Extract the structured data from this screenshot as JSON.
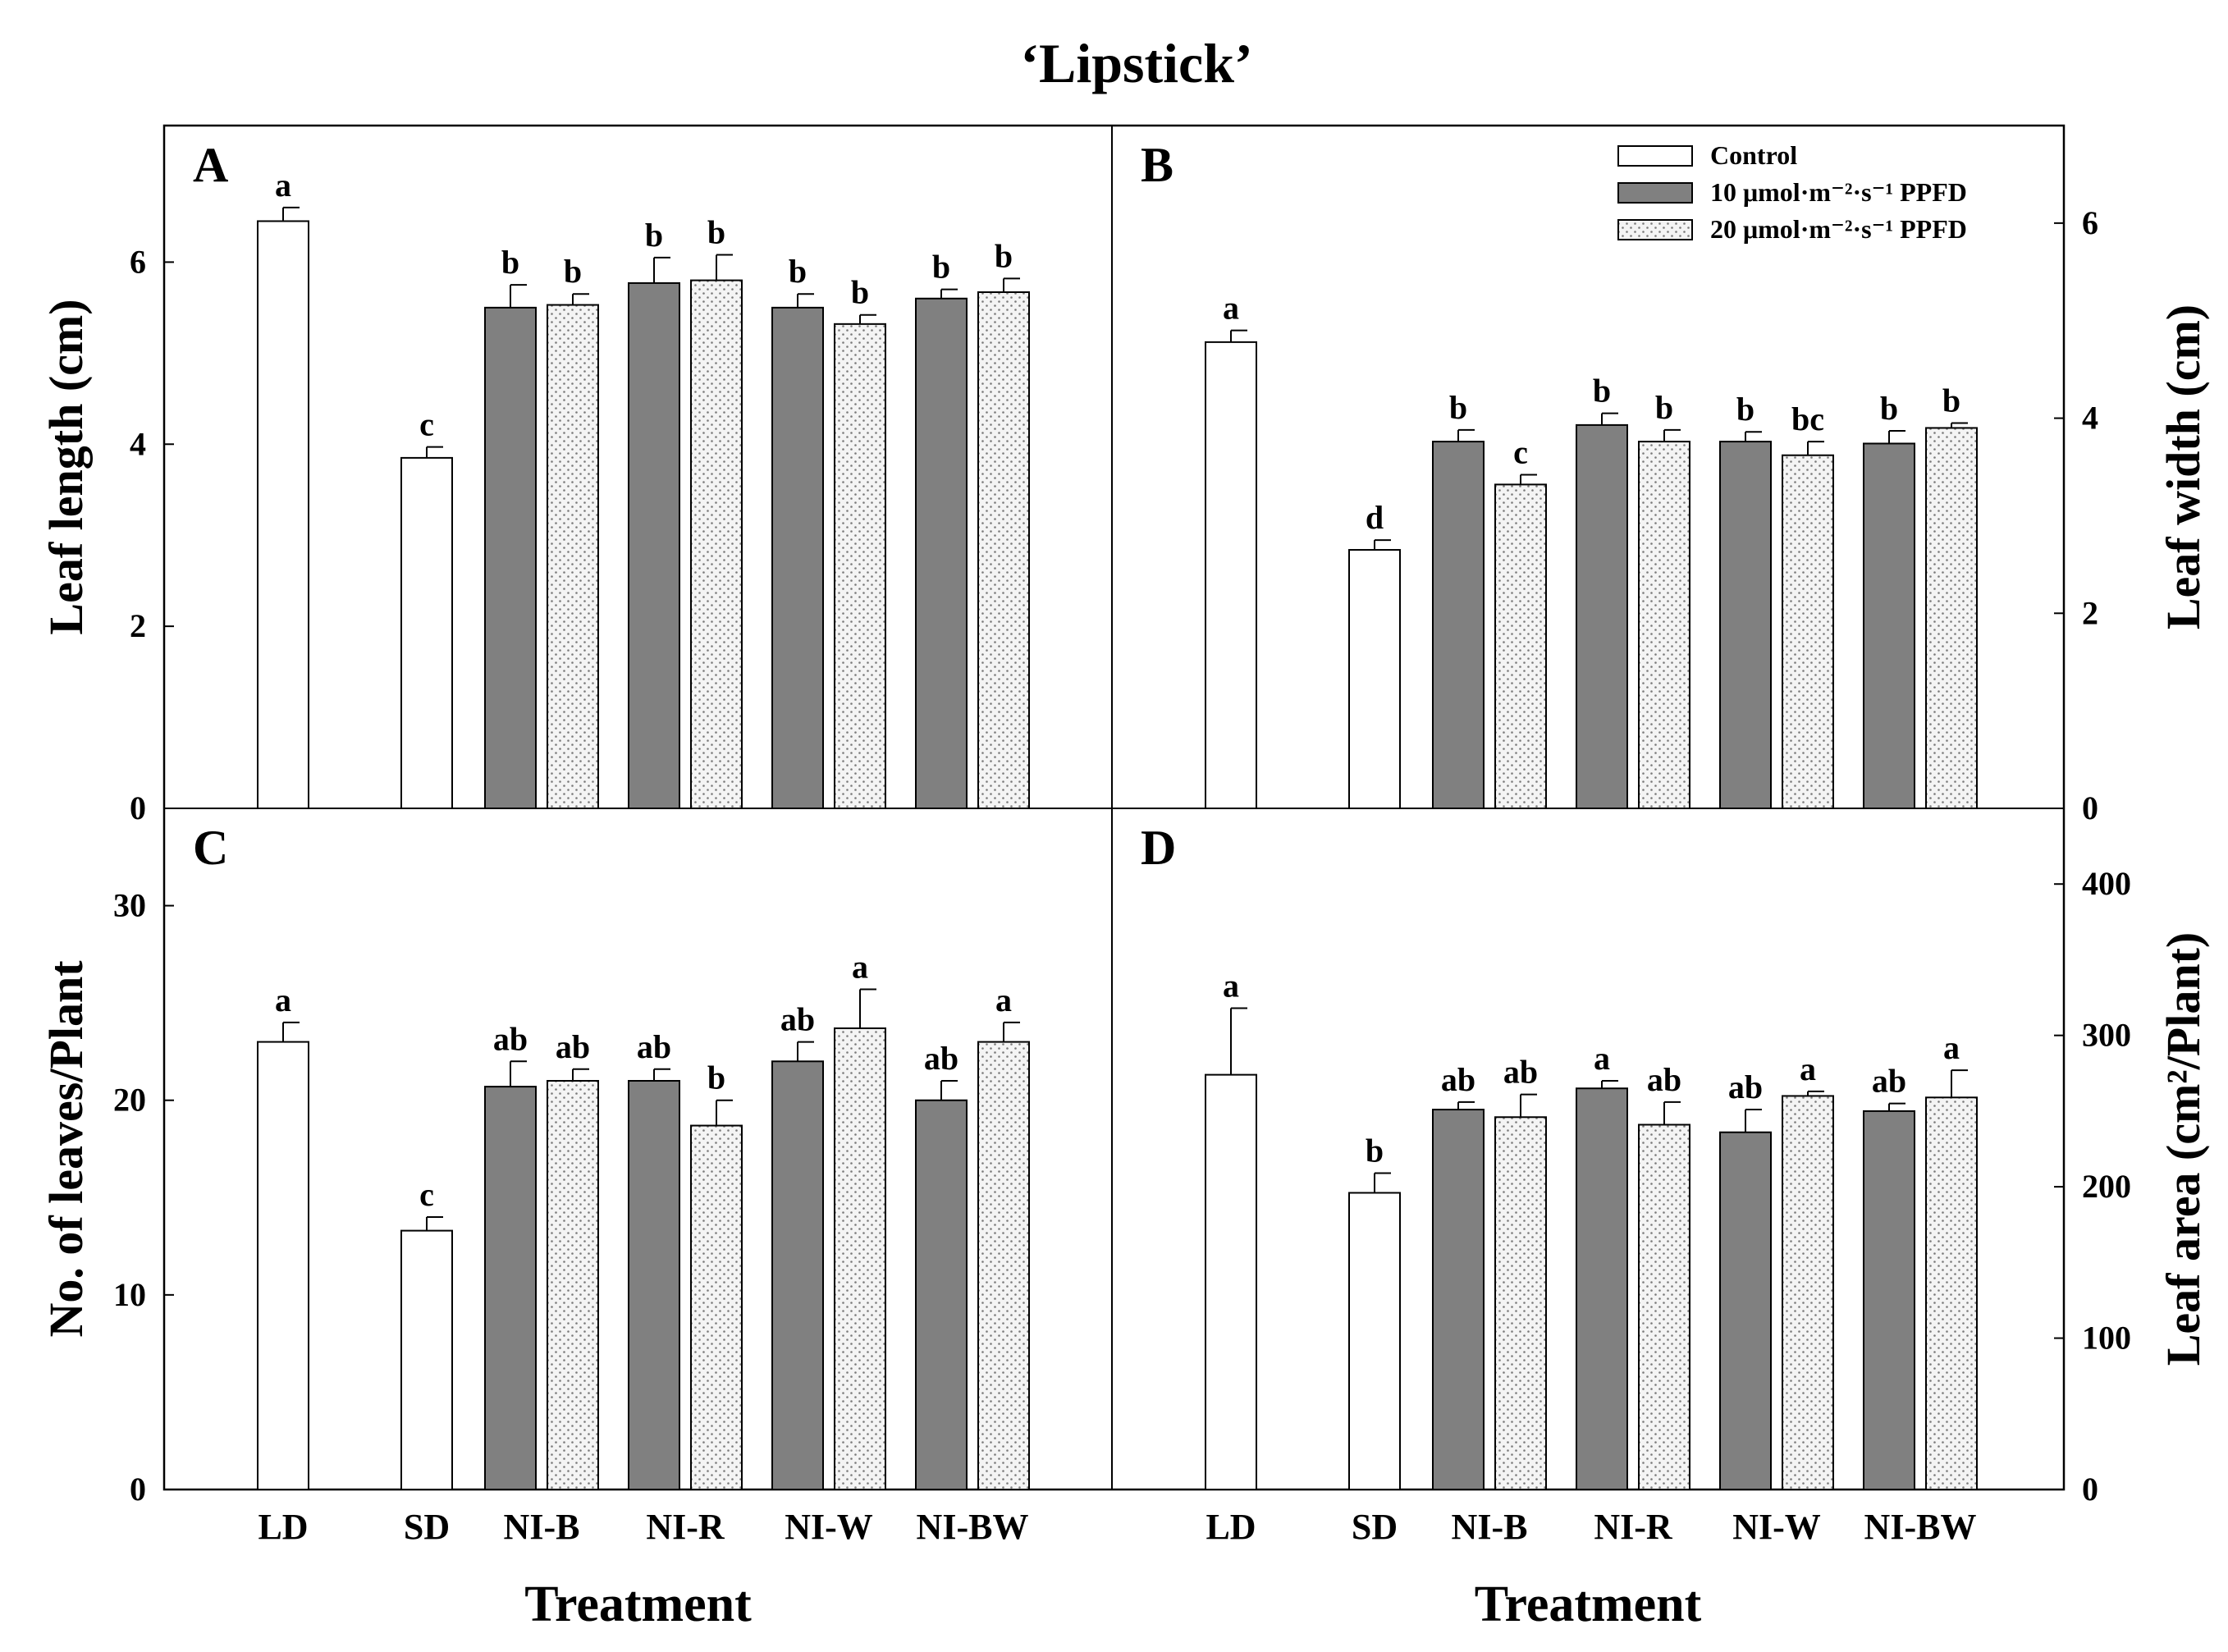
{
  "chart_data": {
    "type": "bar",
    "title": "‘Lipstick’",
    "xlabel": "Treatment",
    "categories": [
      "LD",
      "SD",
      "NI-B",
      "NI-R",
      "NI-W",
      "NI-BW"
    ],
    "legend": {
      "position": "top-right of panel B",
      "entries": [
        {
          "key": "control",
          "label": "Control"
        },
        {
          "key": "ppfd10",
          "label": "10 μmol·m⁻²·s⁻¹ PPFD"
        },
        {
          "key": "ppfd20",
          "label": "20 μmol·m⁻²·s⁻¹ PPFD"
        }
      ]
    },
    "colors": {
      "control": "#ffffff",
      "ppfd10": "#808080",
      "ppfd20": "#f4f4f4",
      "stroke": "#000000",
      "dots": "#7a7a7a"
    },
    "panels": [
      {
        "letter": "A",
        "ylabel": "Leaf length (cm)",
        "y_side": "left",
        "ylim": [
          0,
          7.5
        ],
        "yticks": [
          0,
          2,
          4,
          6
        ],
        "control": [
          {
            "category": "LD",
            "value": 6.45,
            "error": 0.15,
            "sig": "a"
          },
          {
            "category": "SD",
            "value": 3.85,
            "error": 0.12,
            "sig": "c"
          }
        ],
        "ppfd10": [
          {
            "category": "NI-B",
            "value": 5.5,
            "error": 0.25,
            "sig": "b"
          },
          {
            "category": "NI-R",
            "value": 5.77,
            "error": 0.28,
            "sig": "b"
          },
          {
            "category": "NI-W",
            "value": 5.5,
            "error": 0.15,
            "sig": "b"
          },
          {
            "category": "NI-BW",
            "value": 5.6,
            "error": 0.1,
            "sig": "b"
          }
        ],
        "ppfd20": [
          {
            "category": "NI-B",
            "value": 5.53,
            "error": 0.12,
            "sig": "b"
          },
          {
            "category": "NI-R",
            "value": 5.8,
            "error": 0.28,
            "sig": "b"
          },
          {
            "category": "NI-W",
            "value": 5.32,
            "error": 0.1,
            "sig": "b"
          },
          {
            "category": "NI-BW",
            "value": 5.67,
            "error": 0.15,
            "sig": "b"
          }
        ]
      },
      {
        "letter": "B",
        "ylabel": "Leaf width (cm)",
        "y_side": "right",
        "ylim": [
          0,
          7
        ],
        "yticks": [
          0,
          2,
          4,
          6
        ],
        "control": [
          {
            "category": "LD",
            "value": 4.78,
            "error": 0.12,
            "sig": "a"
          },
          {
            "category": "SD",
            "value": 2.65,
            "error": 0.1,
            "sig": "d"
          }
        ],
        "ppfd10": [
          {
            "category": "NI-B",
            "value": 3.76,
            "error": 0.12,
            "sig": "b"
          },
          {
            "category": "NI-R",
            "value": 3.93,
            "error": 0.12,
            "sig": "b"
          },
          {
            "category": "NI-W",
            "value": 3.76,
            "error": 0.1,
            "sig": "b"
          },
          {
            "category": "NI-BW",
            "value": 3.74,
            "error": 0.13,
            "sig": "b"
          }
        ],
        "ppfd20": [
          {
            "category": "NI-B",
            "value": 3.32,
            "error": 0.1,
            "sig": "c"
          },
          {
            "category": "NI-R",
            "value": 3.76,
            "error": 0.12,
            "sig": "b"
          },
          {
            "category": "NI-W",
            "value": 3.62,
            "error": 0.14,
            "sig": "bc"
          },
          {
            "category": "NI-BW",
            "value": 3.9,
            "error": 0.05,
            "sig": "b"
          }
        ]
      },
      {
        "letter": "C",
        "ylabel": "No. of leaves/Plant",
        "y_side": "left",
        "ylim": [
          0,
          35
        ],
        "yticks": [
          0,
          10,
          20,
          30
        ],
        "control": [
          {
            "category": "LD",
            "value": 23.0,
            "error": 1.0,
            "sig": "a"
          },
          {
            "category": "SD",
            "value": 13.3,
            "error": 0.7,
            "sig": "c"
          }
        ],
        "ppfd10": [
          {
            "category": "NI-B",
            "value": 20.7,
            "error": 1.3,
            "sig": "ab"
          },
          {
            "category": "NI-R",
            "value": 21.0,
            "error": 0.6,
            "sig": "ab"
          },
          {
            "category": "NI-W",
            "value": 22.0,
            "error": 1.0,
            "sig": "ab"
          },
          {
            "category": "NI-BW",
            "value": 20.0,
            "error": 1.0,
            "sig": "ab"
          }
        ],
        "ppfd20": [
          {
            "category": "NI-B",
            "value": 21.0,
            "error": 0.6,
            "sig": "ab"
          },
          {
            "category": "NI-R",
            "value": 18.7,
            "error": 1.3,
            "sig": "b"
          },
          {
            "category": "NI-W",
            "value": 23.7,
            "error": 2.0,
            "sig": "a"
          },
          {
            "category": "NI-BW",
            "value": 23.0,
            "error": 1.0,
            "sig": "a"
          }
        ]
      },
      {
        "letter": "D",
        "ylabel": "Leaf area (cm²/Plant)",
        "y_side": "right",
        "ylim": [
          0,
          450
        ],
        "yticks": [
          0,
          100,
          200,
          300,
          400
        ],
        "control": [
          {
            "category": "LD",
            "value": 274,
            "error": 44,
            "sig": "a"
          },
          {
            "category": "SD",
            "value": 196,
            "error": 13,
            "sig": "b"
          }
        ],
        "ppfd10": [
          {
            "category": "NI-B",
            "value": 251,
            "error": 5,
            "sig": "ab"
          },
          {
            "category": "NI-R",
            "value": 265,
            "error": 5,
            "sig": "a"
          },
          {
            "category": "NI-W",
            "value": 236,
            "error": 15,
            "sig": "ab"
          },
          {
            "category": "NI-BW",
            "value": 250,
            "error": 5,
            "sig": "ab"
          }
        ],
        "ppfd20": [
          {
            "category": "NI-B",
            "value": 246,
            "error": 15,
            "sig": "ab"
          },
          {
            "category": "NI-R",
            "value": 241,
            "error": 15,
            "sig": "ab"
          },
          {
            "category": "NI-W",
            "value": 260,
            "error": 3,
            "sig": "a"
          },
          {
            "category": "NI-BW",
            "value": 259,
            "error": 18,
            "sig": "a"
          }
        ]
      }
    ]
  }
}
